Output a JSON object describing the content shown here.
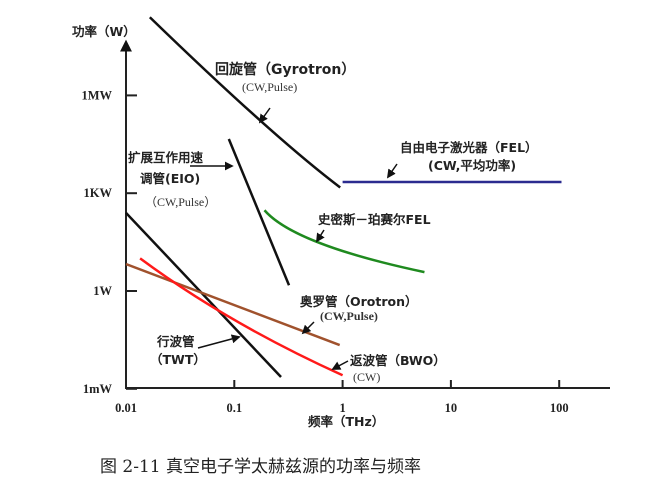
{
  "chart_data": {
    "type": "line",
    "xlabel": "频率（THz）",
    "ylabel": "功率（W）",
    "x_scale": "log",
    "y_scale": "log",
    "xlim": [
      0.01,
      200
    ],
    "ylim": [
      0.001,
      1000000000
    ],
    "x_ticks": [
      {
        "value": 0.01,
        "label": "0.01"
      },
      {
        "value": 0.1,
        "label": "0.1"
      },
      {
        "value": 1,
        "label": "1"
      },
      {
        "value": 10,
        "label": "10"
      },
      {
        "value": 100,
        "label": "100"
      }
    ],
    "y_ticks": [
      {
        "value": 0.001,
        "label": "1mW"
      },
      {
        "value": 1,
        "label": "1W"
      },
      {
        "value": 1000,
        "label": "1KW"
      },
      {
        "value": 1000000,
        "label": "1MW"
      }
    ],
    "grid": false,
    "series": [
      {
        "id": "gyrotron",
        "color": "#111111",
        "x": [
          0.0166,
          0.17,
          0.95
        ],
        "y": [
          250000000,
          180000,
          1500
        ]
      },
      {
        "id": "eio",
        "color": "#111111",
        "x": [
          0.089,
          0.32
        ],
        "y": [
          46000,
          1.5
        ]
      },
      {
        "id": "fel",
        "color": "#2b2b8f",
        "x": [
          1,
          105
        ],
        "y": [
          2200,
          2200
        ]
      },
      {
        "id": "smith-purcell",
        "color": "#1f8a1f",
        "x": [
          0.19,
          0.61,
          5.7
        ],
        "y": [
          300,
          30,
          3.8
        ]
      },
      {
        "id": "twt",
        "color": "#111111",
        "x": [
          0.01,
          0.27
        ],
        "y": [
          250,
          0.0023
        ]
      },
      {
        "id": "orotron",
        "color": "#a0522d",
        "x": [
          0.01,
          0.94
        ],
        "y": [
          6.7,
          0.022
        ]
      },
      {
        "id": "bwo",
        "color": "#ff1a1a",
        "x": [
          0.0135,
          0.1,
          1
        ],
        "y": [
          10,
          0.13,
          0.0026
        ]
      }
    ],
    "annotations": {
      "gyrotron": {
        "name": "回旋管（Gyrotron）",
        "mode": "(CW,Pulse)"
      },
      "eio": {
        "line1": "扩展互作用速",
        "line2": "调管(EIO)",
        "mode": "（CW,Pulse）"
      },
      "fel": {
        "name": "自由电子激光器（FEL）",
        "mode": "(CW,平均功率)"
      },
      "smith_purcell": {
        "name": "史密斯－珀赛尔FEL"
      },
      "orotron": {
        "name": "奥罗管（Orotron）",
        "mode": "(CW,Pulse)"
      },
      "twt": {
        "line1": "行波管",
        "line2": "（TWT）"
      },
      "bwo": {
        "name": "返波管（BWO）",
        "mode": "(CW)"
      }
    }
  },
  "caption": "图 2-11   真空电子学太赫兹源的功率与频率"
}
